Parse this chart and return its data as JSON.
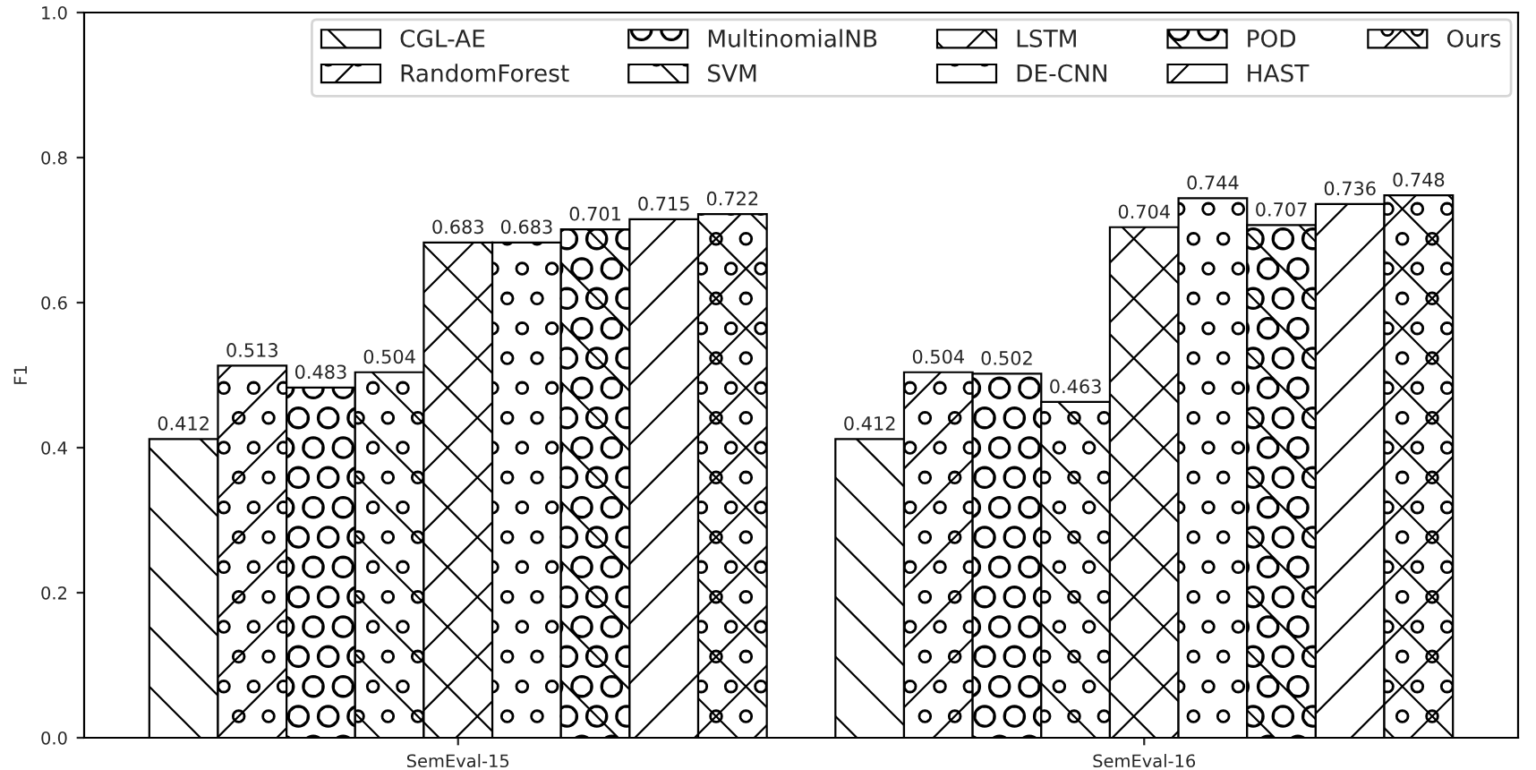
{
  "chart_data": {
    "type": "bar",
    "ylabel": "F1",
    "categories": [
      "SemEval-15",
      "SemEval-16"
    ],
    "series": [
      {
        "name": "CGL-AE",
        "color": "#000000",
        "values": [
          0.412,
          0.412
        ]
      },
      {
        "name": "RandomForest",
        "color": "#000000",
        "values": [
          0.513,
          0.504
        ]
      },
      {
        "name": "MultinomialNB",
        "color": "#000000",
        "values": [
          0.483,
          0.502
        ]
      },
      {
        "name": "SVM",
        "color": "#000000",
        "values": [
          0.504,
          0.463
        ]
      },
      {
        "name": "LSTM",
        "color": "#000000",
        "values": [
          0.683,
          0.704
        ]
      },
      {
        "name": "DE-CNN",
        "color": "#000000",
        "values": [
          0.683,
          0.744
        ]
      },
      {
        "name": "POD",
        "color": "#000000",
        "values": [
          0.701,
          0.707
        ]
      },
      {
        "name": "HAST",
        "color": "#000000",
        "values": [
          0.715,
          0.736
        ]
      },
      {
        "name": "Ours",
        "color": "#000000",
        "values": [
          0.722,
          0.748
        ]
      }
    ],
    "ylim": [
      0.0,
      1.0
    ],
    "yticks": [
      {
        "value": 0.0,
        "label": "0.0"
      },
      {
        "value": 0.2,
        "label": "0.2"
      },
      {
        "value": 0.4,
        "label": "0.4"
      },
      {
        "value": 0.6,
        "label": "0.6"
      },
      {
        "value": 0.8,
        "label": "0.8"
      },
      {
        "value": 1.0,
        "label": "1.0"
      }
    ],
    "data_labels": true,
    "legend": "top right",
    "grid": false
  }
}
